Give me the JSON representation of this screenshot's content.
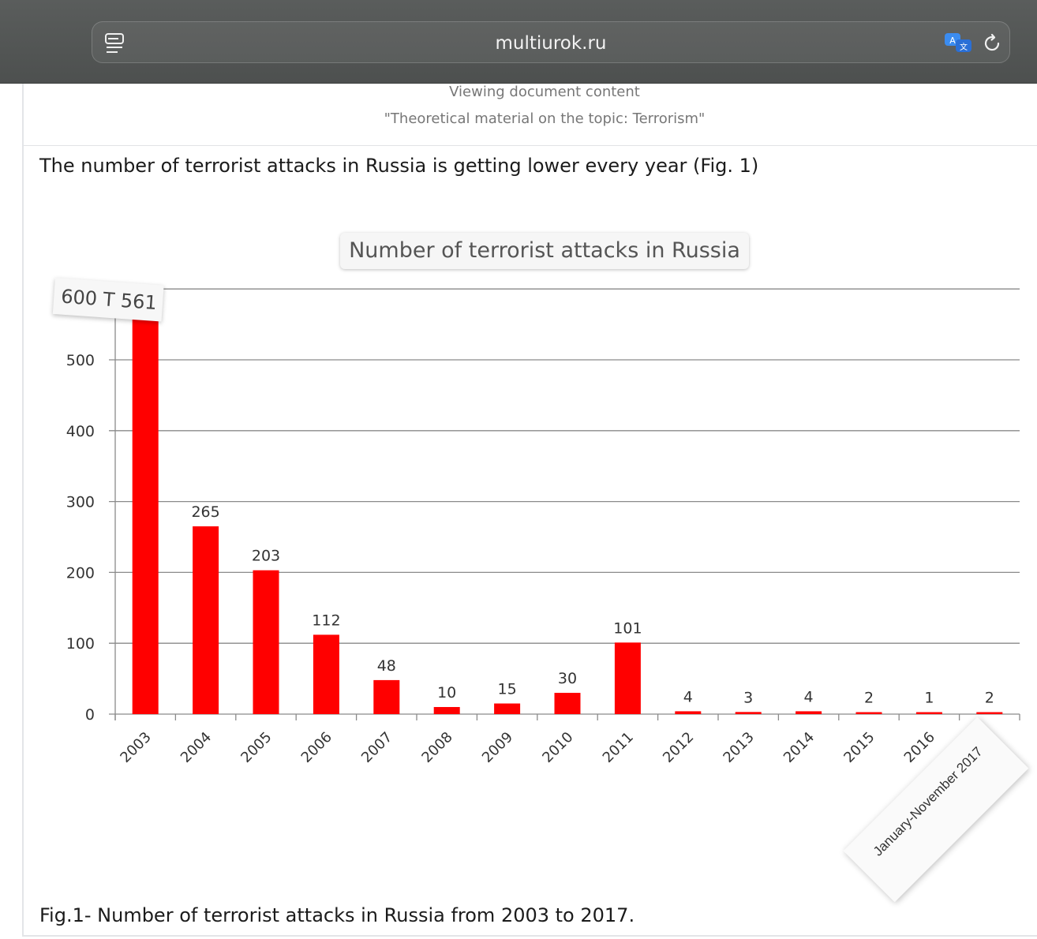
{
  "browser": {
    "url": "multiurok.ru",
    "icons": [
      "reader-icon",
      "translate-icon",
      "reload-icon"
    ]
  },
  "document": {
    "heading": "Viewing document content",
    "subheading": "\"Theoretical material on the topic: Terrorism\"",
    "intro": "The number of terrorist attacks in Russia is getting lower every year (Fig. 1)",
    "caption": "Fig.1- Number of terrorist attacks in Russia from 2003 to 2017."
  },
  "chart_top_tick_label": "600 T 561",
  "chart_data": {
    "type": "bar",
    "title": "Number of terrorist attacks in Russia",
    "xlabel": "",
    "ylabel": "",
    "categories": [
      "2003",
      "2004",
      "2005",
      "2006",
      "2007",
      "2008",
      "2009",
      "2010",
      "2011",
      "2012",
      "2013",
      "2014",
      "2015",
      "2016",
      "January-November 2017"
    ],
    "values": [
      561,
      265,
      203,
      112,
      48,
      10,
      15,
      30,
      101,
      4,
      3,
      4,
      2,
      1,
      2
    ],
    "data_labels": [
      "",
      "265",
      "203",
      "112",
      "48",
      "10",
      "15",
      "30",
      "101",
      "4",
      "3",
      "4",
      "2",
      "1",
      "2"
    ],
    "yticks": [
      "0",
      "100",
      "200",
      "300",
      "400",
      "500"
    ],
    "ylim": [
      0,
      600
    ],
    "grid": true,
    "bar_color": "#ff0000"
  }
}
